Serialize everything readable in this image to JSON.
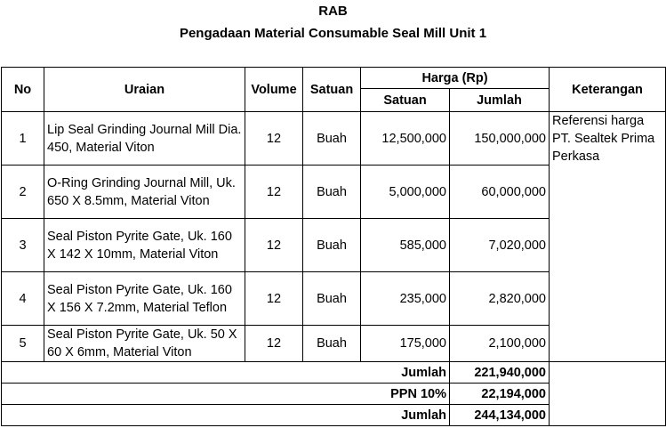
{
  "document": {
    "title": "RAB",
    "subtitle": "Pengadaan Material Consumable Seal Mill Unit 1"
  },
  "table": {
    "headers": {
      "no": "No",
      "uraian": "Uraian",
      "volume": "Volume",
      "satuan": "Satuan",
      "harga": "Harga (Rp)",
      "harga_satuan": "Satuan",
      "harga_jumlah": "Jumlah",
      "keterangan": "Keterangan"
    },
    "rows": [
      {
        "no": "1",
        "uraian": "Lip Seal Grinding Journal Mill Dia. 450, Material Viton",
        "volume": "12",
        "satuan": "Buah",
        "harga_satuan": "12,500,000",
        "jumlah": "150,000,000"
      },
      {
        "no": "2",
        "uraian": "O-Ring Grinding Journal Mill, Uk. 650 X 8.5mm, Material Viton",
        "volume": "12",
        "satuan": "Buah",
        "harga_satuan": "5,000,000",
        "jumlah": "60,000,000"
      },
      {
        "no": "3",
        "uraian": "Seal Piston Pyrite Gate, Uk. 160 X 142 X 10mm, Material Viton",
        "volume": "12",
        "satuan": "Buah",
        "harga_satuan": "585,000",
        "jumlah": "7,020,000"
      },
      {
        "no": "4",
        "uraian": "Seal Piston Pyrite Gate, Uk. 160 X 156 X 7.2mm, Material Teflon",
        "volume": "12",
        "satuan": "Buah",
        "harga_satuan": "235,000",
        "jumlah": "2,820,000"
      },
      {
        "no": "5",
        "uraian": "Seal Piston Pyrite Gate, Uk. 50 X 60 X 6mm, Material Viton",
        "volume": "12",
        "satuan": "Buah",
        "harga_satuan": "175,000",
        "jumlah": "2,100,000"
      }
    ],
    "keterangan": "Referensi harga PT. Sealtek Prima Perkasa",
    "totals": [
      {
        "label": "Jumlah",
        "value": "221,940,000"
      },
      {
        "label": "PPN 10%",
        "value": "22,194,000"
      },
      {
        "label": "Jumlah",
        "value": "244,134,000"
      }
    ]
  }
}
